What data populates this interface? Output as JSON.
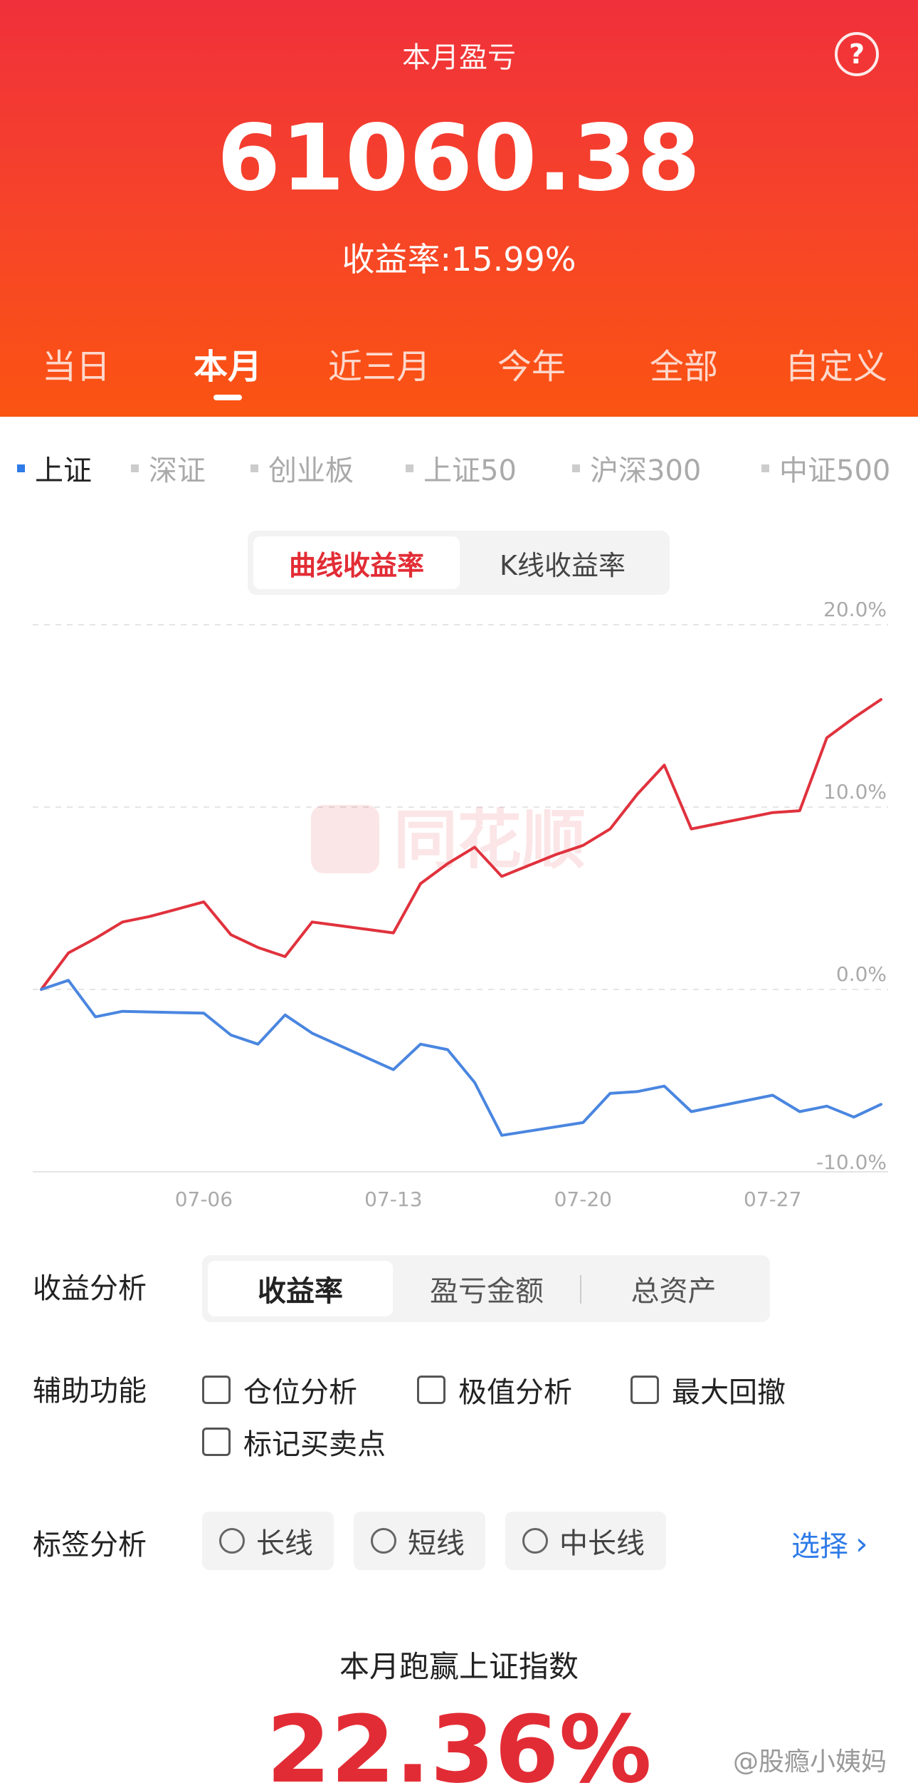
{
  "header": {
    "title": "本月盈亏",
    "help_symbol": "?",
    "profit_value": "61060.38",
    "yield_text": "收益率:15.99%",
    "tabs": [
      {
        "label": "当日"
      },
      {
        "label": "本月"
      },
      {
        "label": "近三月"
      },
      {
        "label": "今年"
      },
      {
        "label": "全部"
      },
      {
        "label": "自定义"
      }
    ],
    "active_tab": "本月"
  },
  "index_selector": {
    "items": [
      {
        "label": "上证",
        "active": true
      },
      {
        "label": "深证",
        "active": false
      },
      {
        "label": "创业板",
        "active": false
      },
      {
        "label": "上证50",
        "active": false
      },
      {
        "label": "沪深300",
        "active": false
      },
      {
        "label": "中证500",
        "active": false
      }
    ]
  },
  "chart_toggle": {
    "curve_label": "曲线收益率",
    "kline_label": "K线收益率"
  },
  "watermark": {
    "brand": "同花顺"
  },
  "chart_data": {
    "type": "line",
    "ylim": [
      -10,
      20
    ],
    "y_ticks": [
      "20.0%",
      "10.0%",
      "0.0%",
      "-10.0%"
    ],
    "y_tick_values": [
      20,
      10,
      0,
      -10
    ],
    "x_ticks": [
      {
        "label": "07-06",
        "index": 6
      },
      {
        "label": "07-13",
        "index": 13
      },
      {
        "label": "07-20",
        "index": 20
      },
      {
        "label": "07-27",
        "index": 27
      }
    ],
    "colors": {
      "portfolio": "#e0323d",
      "index": "#4a86e0",
      "grid": "#e5e5e5"
    },
    "series": [
      {
        "color": "#e0323d",
        "points": [
          [
            0,
            0
          ],
          [
            1,
            2.0
          ],
          [
            2,
            2.8
          ],
          [
            3,
            3.7
          ],
          [
            4,
            4.0
          ],
          [
            5,
            4.4
          ],
          [
            6,
            4.8
          ],
          [
            7,
            3.0
          ],
          [
            8,
            2.3
          ],
          [
            9,
            1.8
          ],
          [
            10,
            3.7
          ],
          [
            11,
            3.5
          ],
          [
            12,
            3.3
          ],
          [
            13,
            3.1
          ],
          [
            14,
            5.8
          ],
          [
            15,
            6.9
          ],
          [
            16,
            7.8
          ],
          [
            17,
            6.2
          ],
          [
            18,
            6.8
          ],
          [
            19,
            7.4
          ],
          [
            20,
            7.9
          ],
          [
            21,
            8.8
          ],
          [
            22,
            10.7
          ],
          [
            23,
            12.3
          ],
          [
            24,
            8.8
          ],
          [
            25,
            9.1
          ],
          [
            26,
            9.4
          ],
          [
            27,
            9.7
          ],
          [
            28,
            9.8
          ],
          [
            29,
            13.8
          ],
          [
            30,
            14.9
          ],
          [
            31,
            15.9
          ]
        ]
      },
      {
        "color": "#4a86e0",
        "points": [
          [
            0,
            0
          ],
          [
            1,
            0.5
          ],
          [
            2,
            -1.5
          ],
          [
            3,
            -1.2
          ],
          [
            6,
            -1.3
          ],
          [
            7,
            -2.5
          ],
          [
            8,
            -3.0
          ],
          [
            9,
            -1.4
          ],
          [
            10,
            -2.4
          ],
          [
            13,
            -4.4
          ],
          [
            14,
            -3.0
          ],
          [
            15,
            -3.3
          ],
          [
            16,
            -5.1
          ],
          [
            17,
            -8.0
          ],
          [
            20,
            -7.3
          ],
          [
            21,
            -5.7
          ],
          [
            22,
            -5.6
          ],
          [
            23,
            -5.3
          ],
          [
            24,
            -6.7
          ],
          [
            27,
            -5.8
          ],
          [
            28,
            -6.7
          ],
          [
            29,
            -6.4
          ],
          [
            30,
            -7.0
          ],
          [
            31,
            -6.3
          ]
        ]
      }
    ]
  },
  "analysis": {
    "label": "收益分析",
    "options": [
      {
        "label": "收益率",
        "active": true
      },
      {
        "label": "盈亏金额",
        "active": false
      },
      {
        "label": "总资产",
        "active": false
      }
    ]
  },
  "aux": {
    "label": "辅助功能",
    "checkboxes": [
      {
        "label": "仓位分析",
        "checked": false
      },
      {
        "label": "极值分析",
        "checked": false
      },
      {
        "label": "最大回撤",
        "checked": false
      },
      {
        "label": "标记买卖点",
        "checked": false
      }
    ]
  },
  "tags": {
    "label": "标签分析",
    "options": [
      {
        "label": "长线"
      },
      {
        "label": "短线"
      },
      {
        "label": "中长线"
      }
    ],
    "choose_label": "选择",
    "choose_chevron": "›"
  },
  "beat": {
    "title": "本月跑赢上证指数",
    "value": "22.36%"
  },
  "footer_watermark": "@股瘾小姨妈"
}
